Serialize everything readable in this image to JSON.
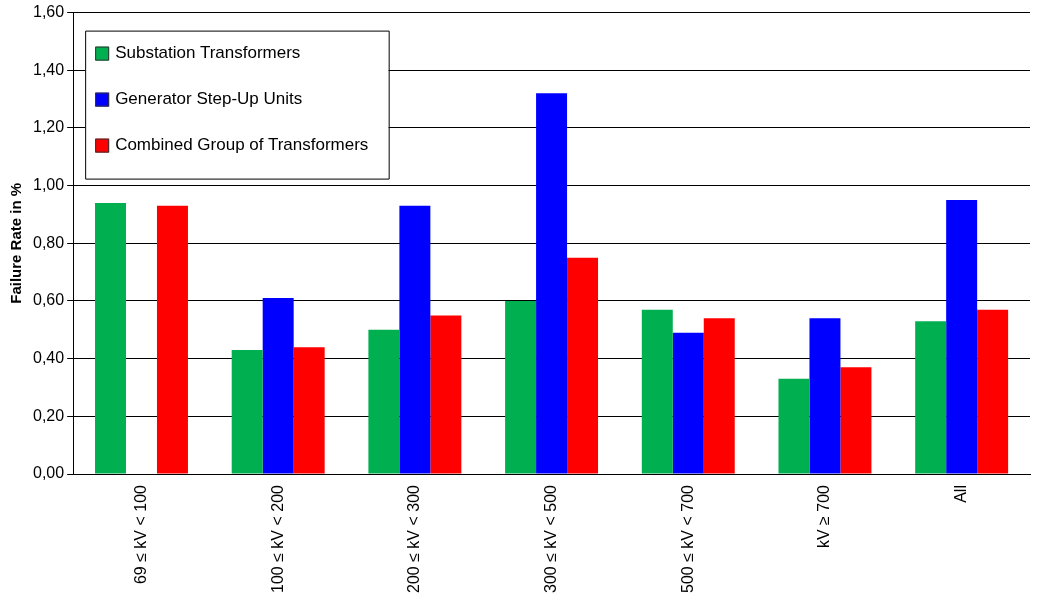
{
  "chart_data": {
    "type": "bar",
    "ylabel": "Failure Rate in %",
    "categories": [
      "69 ≤ kV < 100",
      "100 ≤ kV < 200",
      "200 ≤ kV < 300",
      "300 ≤ kV < 500",
      "500 ≤ kV < 700",
      "kV ≥ 700",
      "All"
    ],
    "series": [
      {
        "name": "Substation Transformers",
        "color": "#00b050",
        "values": [
          0.94,
          0.43,
          0.5,
          0.6,
          0.57,
          0.33,
          0.53
        ]
      },
      {
        "name": "Generator Step-Up Units",
        "color": "#0000ff",
        "values": [
          null,
          0.61,
          0.93,
          1.32,
          0.49,
          0.54,
          0.95
        ]
      },
      {
        "name": "Combined Group of Transformers",
        "color": "#ff0000",
        "values": [
          0.93,
          0.44,
          0.55,
          0.75,
          0.54,
          0.37,
          0.57
        ]
      }
    ],
    "ylim": [
      0,
      1.6
    ],
    "yticks": [
      {
        "value": 0,
        "label": "0,00"
      },
      {
        "value": 0.2,
        "label": "0,20"
      },
      {
        "value": 0.4,
        "label": "0,40"
      },
      {
        "value": 0.6,
        "label": "0,60"
      },
      {
        "value": 0.8,
        "label": "0,80"
      },
      {
        "value": 1,
        "label": "1,00"
      },
      {
        "value": 1.2,
        "label": "1,20"
      },
      {
        "value": 1.4,
        "label": "1,40"
      },
      {
        "value": 1.6,
        "label": "1,60"
      }
    ],
    "grid": "y",
    "legend": "top left"
  }
}
